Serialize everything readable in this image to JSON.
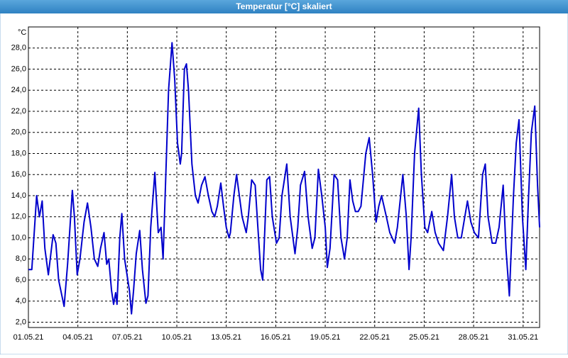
{
  "chart_data": {
    "type": "line",
    "title": "Temperatur [°C] skaliert",
    "y_label": "°C",
    "color": "#0000cc",
    "grid": true,
    "xlim": [
      "2021-05-01T00:00",
      "2021-06-01T00:00"
    ],
    "xticks": [
      {
        "value": "2021-05-01T00:00",
        "label": "01.05.21"
      },
      {
        "value": "2021-05-04T00:00",
        "label": "04.05.21"
      },
      {
        "value": "2021-05-07T00:00",
        "label": "07.05.21"
      },
      {
        "value": "2021-05-10T00:00",
        "label": "10.05.21"
      },
      {
        "value": "2021-05-13T00:00",
        "label": "13.05.21"
      },
      {
        "value": "2021-05-16T00:00",
        "label": "16.05.21"
      },
      {
        "value": "2021-05-19T00:00",
        "label": "19.05.21"
      },
      {
        "value": "2021-05-22T00:00",
        "label": "22.05.21"
      },
      {
        "value": "2021-05-25T00:00",
        "label": "25.05.21"
      },
      {
        "value": "2021-05-28T00:00",
        "label": "28.05.21"
      },
      {
        "value": "2021-05-31T00:00",
        "label": "31.05.21"
      }
    ],
    "ylim": [
      1.5,
      30
    ],
    "yticks": [
      {
        "value": 2,
        "label": "2,0"
      },
      {
        "value": 4,
        "label": "4,0"
      },
      {
        "value": 6,
        "label": "6,0"
      },
      {
        "value": 8,
        "label": "8,0"
      },
      {
        "value": 10,
        "label": "10,0"
      },
      {
        "value": 12,
        "label": "12,0"
      },
      {
        "value": 14,
        "label": "14,0"
      },
      {
        "value": 16,
        "label": "16,0"
      },
      {
        "value": 18,
        "label": "18,0"
      },
      {
        "value": 20,
        "label": "20,0"
      },
      {
        "value": 22,
        "label": "22,0"
      },
      {
        "value": 24,
        "label": "24,0"
      },
      {
        "value": 26,
        "label": "26,0"
      },
      {
        "value": 28,
        "label": "28,0"
      }
    ],
    "x": [
      "2021-05-01T00:00",
      "2021-05-01T05:00",
      "2021-05-01T12:00",
      "2021-05-01T16:00",
      "2021-05-01T20:00",
      "2021-05-02T00:00",
      "2021-05-02T05:00",
      "2021-05-02T12:00",
      "2021-05-02T16:00",
      "2021-05-02T20:00",
      "2021-05-03T04:00",
      "2021-05-03T09:00",
      "2021-05-03T16:00",
      "2021-05-03T19:00",
      "2021-05-03T23:00",
      "2021-05-04T03:00",
      "2021-05-04T09:00",
      "2021-05-04T14:00",
      "2021-05-04T19:00",
      "2021-05-05T00:00",
      "2021-05-05T05:00",
      "2021-05-05T09:00",
      "2021-05-05T14:00",
      "2021-05-05T18:00",
      "2021-05-05T21:00",
      "2021-05-06T01:00",
      "2021-05-06T04:00",
      "2021-05-06T07:00",
      "2021-05-06T09:00",
      "2021-05-06T13:00",
      "2021-05-06T16:00",
      "2021-05-06T20:00",
      "2021-05-07T03:00",
      "2021-05-07T06:00",
      "2021-05-07T09:00",
      "2021-05-07T13:00",
      "2021-05-07T18:00",
      "2021-05-07T22:00",
      "2021-05-08T03:00",
      "2021-05-08T06:00",
      "2021-05-08T10:00",
      "2021-05-08T16:00",
      "2021-05-08T21:00",
      "2021-05-09T01:00",
      "2021-05-09T04:00",
      "2021-05-09T07:00",
      "2021-05-09T12:00",
      "2021-05-09T17:00",
      "2021-05-09T21:00",
      "2021-05-10T01:00",
      "2021-05-10T05:00",
      "2021-05-10T07:00",
      "2021-05-10T11:00",
      "2021-05-10T14:00",
      "2021-05-10T17:00",
      "2021-05-10T22:00",
      "2021-05-11T03:00",
      "2021-05-11T07:00",
      "2021-05-11T12:00",
      "2021-05-11T17:00",
      "2021-05-11T22:00",
      "2021-05-12T03:00",
      "2021-05-12T07:00",
      "2021-05-12T11:00",
      "2021-05-12T16:00",
      "2021-05-12T20:00",
      "2021-05-13T00:00",
      "2021-05-13T04:00",
      "2021-05-13T06:00",
      "2021-05-13T11:00",
      "2021-05-13T15:00",
      "2021-05-13T19:00",
      "2021-05-13T23:00",
      "2021-05-14T05:00",
      "2021-05-14T08:00",
      "2021-05-14T13:00",
      "2021-05-14T18:00",
      "2021-05-14T22:00",
      "2021-05-15T02:00",
      "2021-05-15T05:00",
      "2021-05-15T07:00",
      "2021-05-15T11:00",
      "2021-05-15T15:00",
      "2021-05-15T19:00",
      "2021-05-16T01:00",
      "2021-05-16T05:00",
      "2021-05-16T09:00",
      "2021-05-16T16:00",
      "2021-05-16T21:00",
      "2021-05-17T04:00",
      "2021-05-17T08:00",
      "2021-05-17T12:00",
      "2021-05-17T18:00",
      "2021-05-17T23:00",
      "2021-05-18T05:00",
      "2021-05-18T09:00",
      "2021-05-18T14:00",
      "2021-05-18T19:00",
      "2021-05-19T00:00",
      "2021-05-19T03:00",
      "2021-05-19T07:00",
      "2021-05-19T13:00",
      "2021-05-19T18:00",
      "2021-05-19T23:00",
      "2021-05-20T04:00",
      "2021-05-20T08:00",
      "2021-05-20T12:00",
      "2021-05-20T16:00",
      "2021-05-20T20:00",
      "2021-05-21T00:00",
      "2021-05-21T04:00",
      "2021-05-21T11:00",
      "2021-05-21T16:00",
      "2021-05-21T21:00",
      "2021-05-22T02:00",
      "2021-05-22T06:00",
      "2021-05-22T10:00",
      "2021-05-22T17:00",
      "2021-05-22T22:00",
      "2021-05-23T05:00",
      "2021-05-23T09:00",
      "2021-05-23T17:00",
      "2021-05-23T22:00",
      "2021-05-24T02:00",
      "2021-05-24T05:00",
      "2021-05-24T10:00",
      "2021-05-24T16:00",
      "2021-05-24T20:00",
      "2021-05-25T01:00",
      "2021-05-25T05:00",
      "2021-05-25T11:00",
      "2021-05-25T16:00",
      "2021-05-25T21:00",
      "2021-05-26T04:00",
      "2021-05-26T10:00",
      "2021-05-26T16:00",
      "2021-05-26T20:00",
      "2021-05-27T01:00",
      "2021-05-27T06:00",
      "2021-05-27T15:00",
      "2021-05-27T20:00",
      "2021-05-28T01:00",
      "2021-05-28T07:00",
      "2021-05-28T13:00",
      "2021-05-28T17:00",
      "2021-05-28T21:00",
      "2021-05-29T03:00",
      "2021-05-29T08:00",
      "2021-05-29T13:00",
      "2021-05-29T19:00",
      "2021-05-29T23:00",
      "2021-05-30T04:00",
      "2021-05-30T10:00",
      "2021-05-30T14:00",
      "2021-05-30T18:00",
      "2021-05-30T23:00",
      "2021-05-31T04:00",
      "2021-05-31T08:00",
      "2021-05-31T12:00",
      "2021-05-31T17:00",
      "2021-05-31T21:00",
      "2021-06-01T00:00"
    ],
    "values": [
      7,
      7,
      14,
      12,
      13.5,
      9,
      6.5,
      10.3,
      9.5,
      6,
      3.5,
      7.5,
      14.5,
      12,
      6.5,
      8,
      11.5,
      13.3,
      11,
      8,
      7.3,
      9,
      10.5,
      7.5,
      8,
      5,
      3.7,
      4.8,
      3.7,
      10,
      12.3,
      8,
      5,
      2.8,
      5,
      8.5,
      10.7,
      7,
      3.8,
      4.5,
      11,
      16.2,
      10.5,
      11,
      8,
      14,
      24,
      28.5,
      25,
      19,
      17,
      18,
      26,
      26.5,
      24,
      17,
      14,
      13.3,
      15,
      15.8,
      14,
      12.5,
      12,
      13,
      15.2,
      13,
      11,
      10,
      10.5,
      14,
      16,
      14,
      12,
      10.5,
      12,
      15.5,
      15,
      11,
      7,
      6,
      9,
      15.5,
      15.8,
      12,
      9.5,
      10,
      14,
      17,
      12,
      8.5,
      11,
      15,
      16.3,
      12,
      9,
      10,
      16.5,
      14,
      11,
      7.2,
      9,
      16,
      15.5,
      10,
      8,
      10,
      15.5,
      13.5,
      12.5,
      12.5,
      13,
      18,
      19.5,
      16,
      11.5,
      13,
      14,
      12,
      10.5,
      9.5,
      11,
      16,
      12,
      7,
      10,
      18,
      22.3,
      16,
      11,
      10.5,
      12.5,
      10.5,
      9.5,
      8.8,
      12,
      16,
      12,
      10,
      10,
      13.5,
      11.5,
      10.5,
      10,
      16,
      17,
      12,
      9.5,
      9.5,
      11,
      15,
      9,
      4.5,
      14,
      19,
      21.2,
      12,
      7,
      14,
      20,
      22.5,
      15,
      11
    ]
  }
}
